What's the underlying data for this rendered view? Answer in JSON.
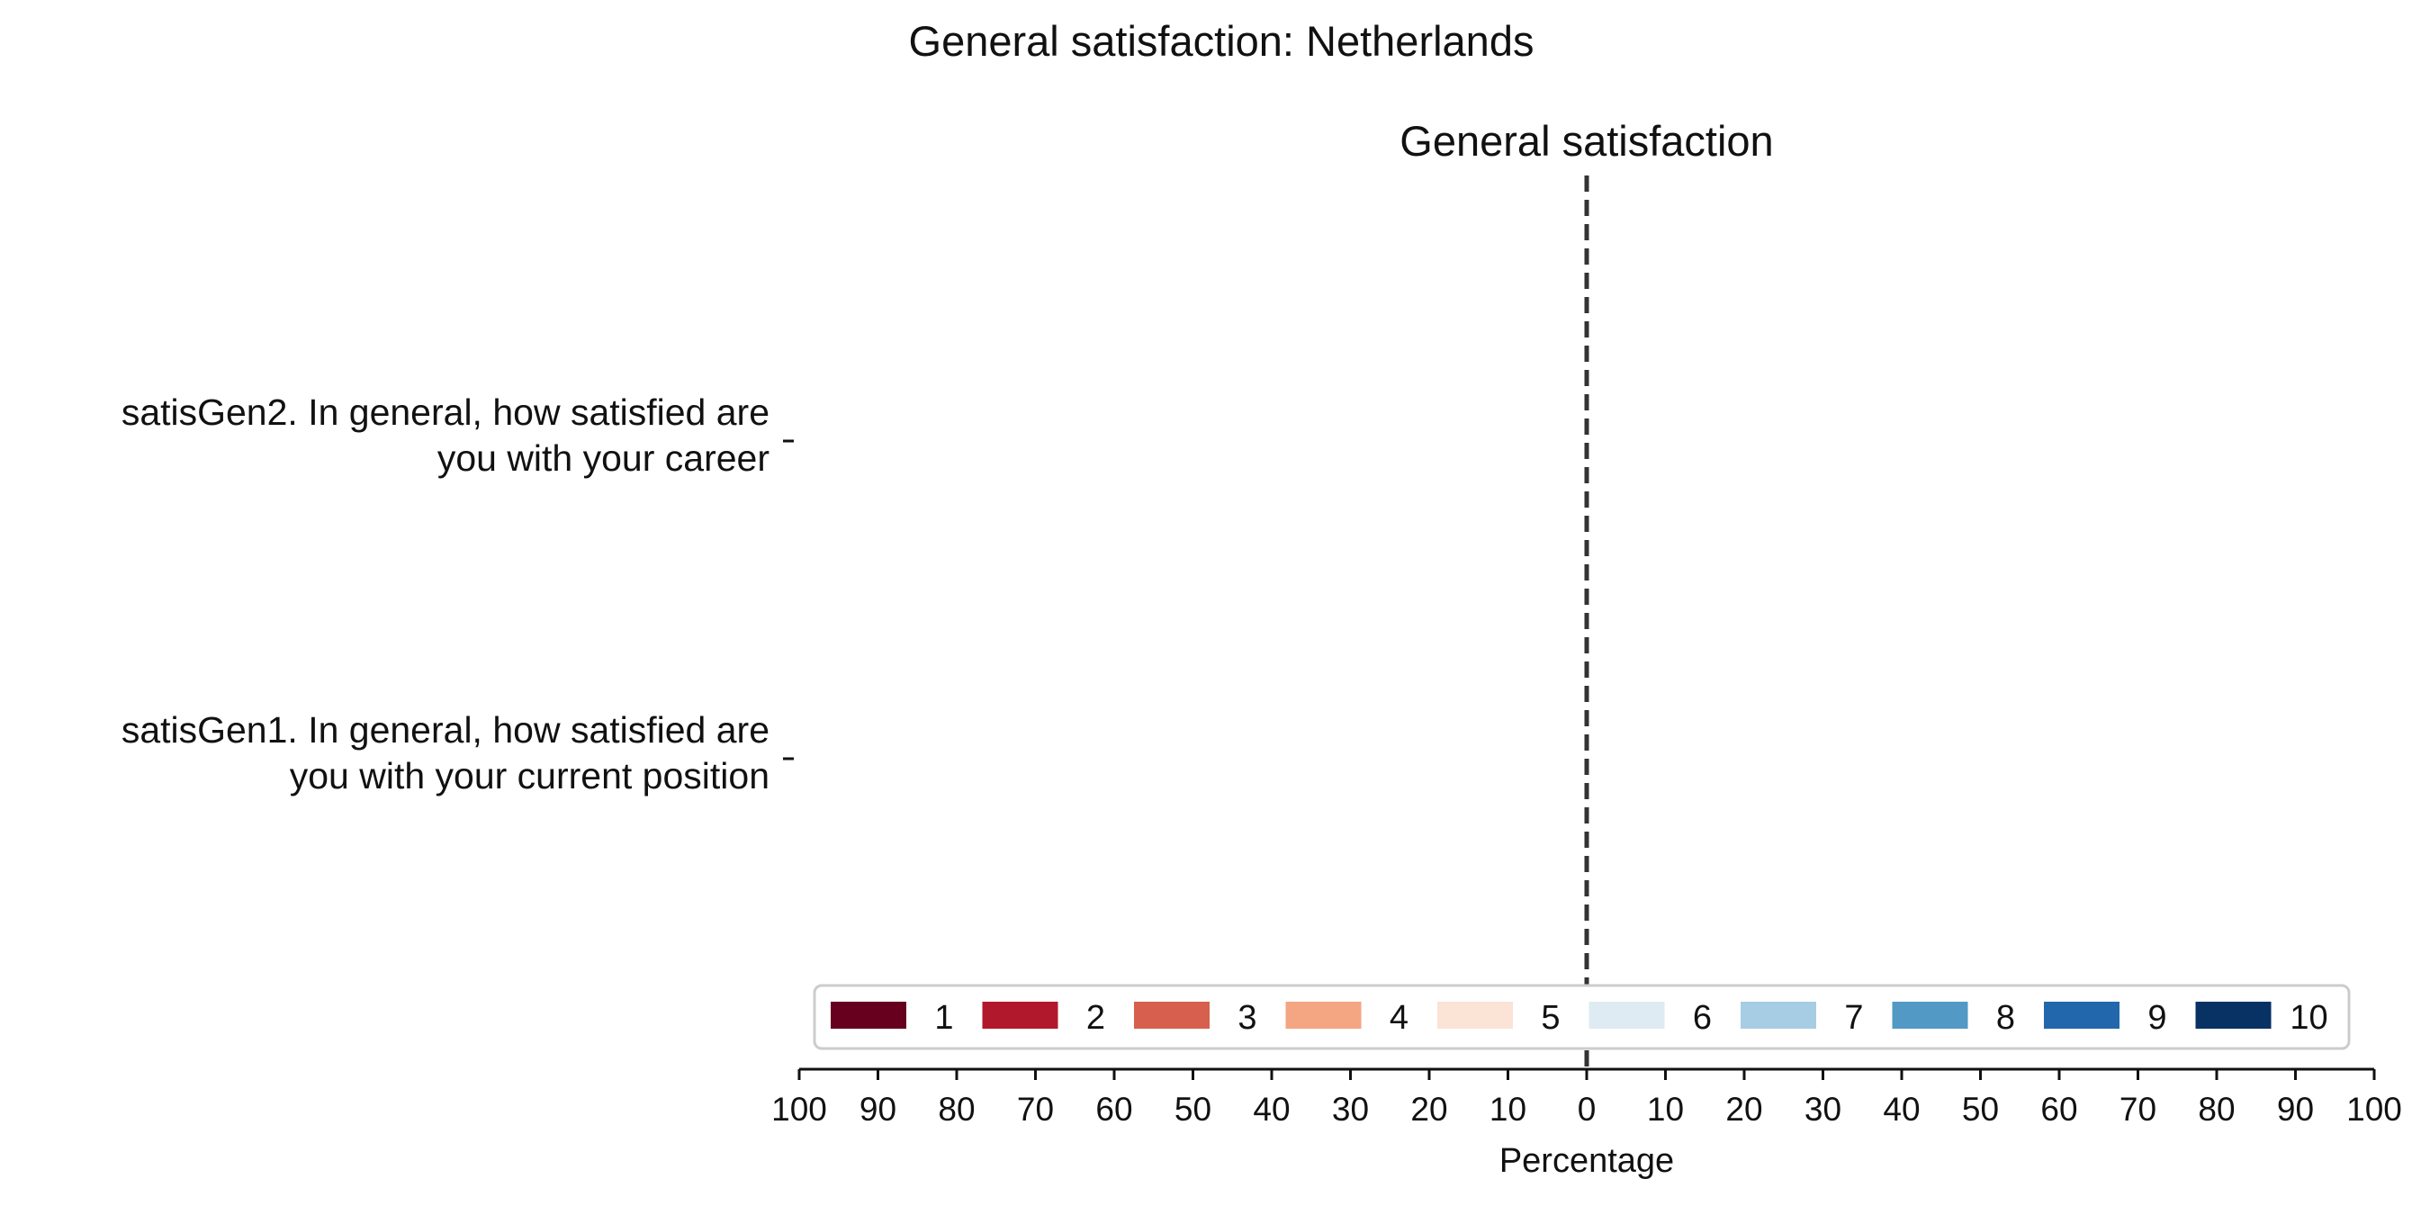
{
  "chart_data": {
    "type": "bar",
    "orientation": "horizontal",
    "stacked": true,
    "diverging": true,
    "title": "General satisfaction: Netherlands",
    "subtitle": "General satisfaction",
    "xlabel": "Percentage",
    "ylabel": "",
    "xlim": [
      -100,
      100
    ],
    "x_ticks": [
      -100,
      -90,
      -80,
      -70,
      -60,
      -50,
      -40,
      -30,
      -20,
      -10,
      0,
      10,
      20,
      30,
      40,
      50,
      60,
      70,
      80,
      90,
      100
    ],
    "x_tick_labels": [
      "100",
      "90",
      "80",
      "70",
      "60",
      "50",
      "40",
      "30",
      "20",
      "10",
      "0",
      "10",
      "20",
      "30",
      "40",
      "50",
      "60",
      "70",
      "80",
      "90",
      "100"
    ],
    "grid": false,
    "legend_placement": "lower-center",
    "categories": [
      [
        "satisGen2. In general, how satisfied are",
        "you with your career"
      ],
      [
        "satisGen1. In general, how satisfied are",
        "you with your current position"
      ]
    ],
    "series": [
      {
        "name": "1",
        "color": "#67001f",
        "values": [
          0,
          0
        ]
      },
      {
        "name": "2",
        "color": "#b2182b",
        "values": [
          0,
          0
        ]
      },
      {
        "name": "3",
        "color": "#d6604d",
        "values": [
          0,
          0
        ]
      },
      {
        "name": "4",
        "color": "#f4a582",
        "values": [
          0,
          0
        ]
      },
      {
        "name": "5",
        "color": "#fbe3d6",
        "values": [
          0,
          0
        ]
      },
      {
        "name": "6",
        "color": "#deebf2",
        "values": [
          0,
          0
        ]
      },
      {
        "name": "7",
        "color": "#a6cde4",
        "values": [
          0,
          0
        ]
      },
      {
        "name": "8",
        "color": "#5299c6",
        "values": [
          0,
          0
        ]
      },
      {
        "name": "9",
        "color": "#2266ac",
        "values": [
          0,
          0
        ]
      },
      {
        "name": "10",
        "color": "#083263",
        "values": [
          0,
          0
        ]
      }
    ],
    "center_line": {
      "value": 0,
      "style": "dashed",
      "color": "#333333"
    }
  }
}
